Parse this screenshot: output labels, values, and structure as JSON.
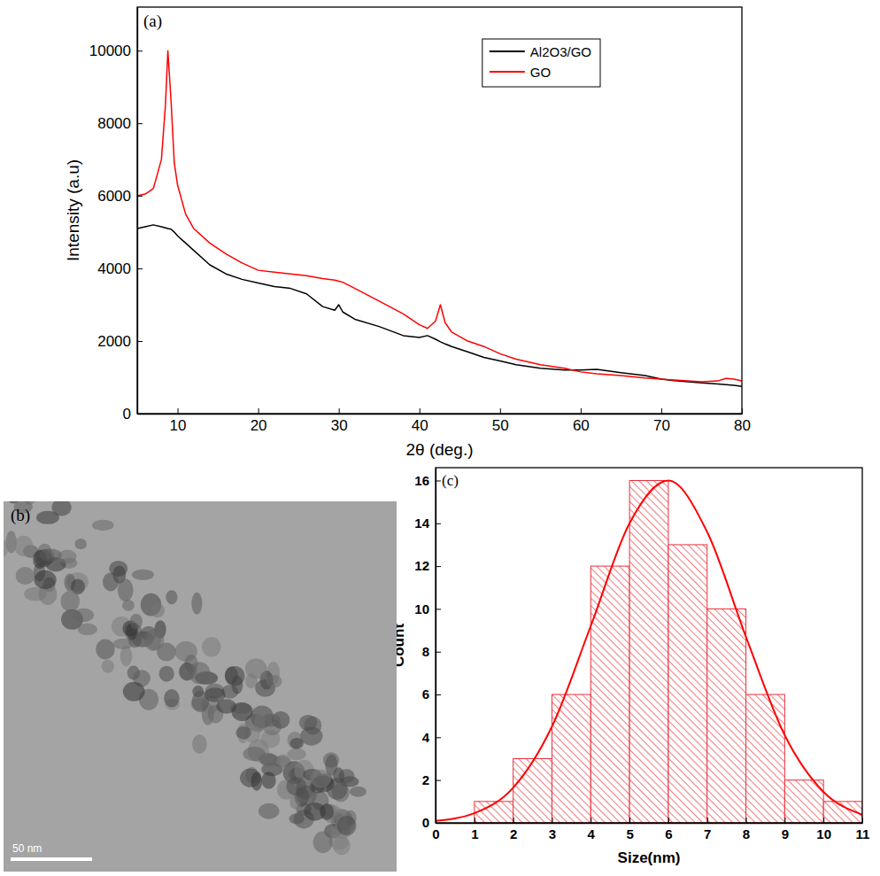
{
  "chart_data": [
    {
      "type": "line",
      "label": "(a)",
      "xlabel": "2θ (deg.)",
      "ylabel": "Intensity (a.u)",
      "x": [
        5,
        6,
        7,
        8,
        8.5,
        8.8,
        9.2,
        9.6,
        10,
        11,
        12,
        14,
        16,
        18,
        20,
        22,
        24,
        26,
        28,
        29.5,
        30,
        30.5,
        32,
        35,
        38,
        40,
        41,
        42,
        42.6,
        43.2,
        44,
        46,
        48,
        50,
        52,
        55,
        58,
        60,
        62,
        65,
        68,
        70,
        72,
        75,
        77,
        78,
        79,
        80
      ],
      "series": [
        {
          "name": "Al2O3/GO",
          "color": "#000000",
          "values": [
            5100,
            5150,
            5200,
            5150,
            5120,
            5100,
            5080,
            5000,
            4900,
            4700,
            4500,
            4100,
            3850,
            3700,
            3600,
            3500,
            3450,
            3300,
            2950,
            2850,
            3000,
            2800,
            2600,
            2400,
            2150,
            2100,
            2150,
            2050,
            1980,
            1920,
            1850,
            1700,
            1550,
            1450,
            1350,
            1250,
            1200,
            1200,
            1220,
            1130,
            1050,
            950,
            900,
            850,
            820,
            800,
            780,
            750
          ]
        },
        {
          "name": "GO",
          "color": "#ff0000",
          "values": [
            6000,
            6050,
            6200,
            7000,
            8500,
            10000,
            8600,
            6900,
            6300,
            5500,
            5100,
            4700,
            4400,
            4150,
            3950,
            3900,
            3850,
            3800,
            3720,
            3680,
            3650,
            3620,
            3450,
            3100,
            2750,
            2450,
            2350,
            2550,
            3000,
            2500,
            2250,
            2000,
            1850,
            1650,
            1500,
            1350,
            1250,
            1150,
            1100,
            1050,
            980,
            950,
            920,
            880,
            900,
            970,
            950,
            900
          ]
        }
      ],
      "xlim": [
        5,
        80
      ],
      "xticks": [
        10,
        20,
        30,
        40,
        50,
        60,
        70,
        80
      ],
      "ylim": [
        0,
        11200
      ],
      "yticks": [
        0,
        2000,
        4000,
        6000,
        8000,
        10000
      ],
      "legend": "upper right"
    },
    {
      "type": "histogram",
      "label": "(c)",
      "xlabel": "Size(nm)",
      "ylabel": "Count",
      "bins": [
        0,
        1,
        2,
        3,
        4,
        5,
        6,
        7,
        8,
        9,
        10,
        11
      ],
      "values": [
        0,
        1,
        3,
        6,
        12,
        16,
        13,
        10,
        6,
        2,
        1
      ],
      "color": "#e8303a",
      "series": [
        {
          "type": "line",
          "color": "#ff0000",
          "x": [
            0,
            1,
            2,
            3,
            4,
            5,
            6,
            7,
            8,
            9,
            10,
            11
          ],
          "values": [
            0.09,
            0.45,
            1.64,
            4.5,
            9.2,
            14.0,
            16.0,
            13.6,
            8.7,
            4.1,
            1.45,
            0.38
          ]
        }
      ],
      "xlim": [
        0,
        11
      ],
      "xticks": [
        0,
        1,
        2,
        3,
        4,
        5,
        6,
        7,
        8,
        9,
        10,
        11
      ],
      "ylim": [
        0,
        16.6
      ],
      "yticks": [
        0,
        2,
        4,
        6,
        8,
        10,
        12,
        14,
        16
      ]
    }
  ],
  "image": {
    "label": "(b)",
    "scale_bar": "50 nm"
  }
}
